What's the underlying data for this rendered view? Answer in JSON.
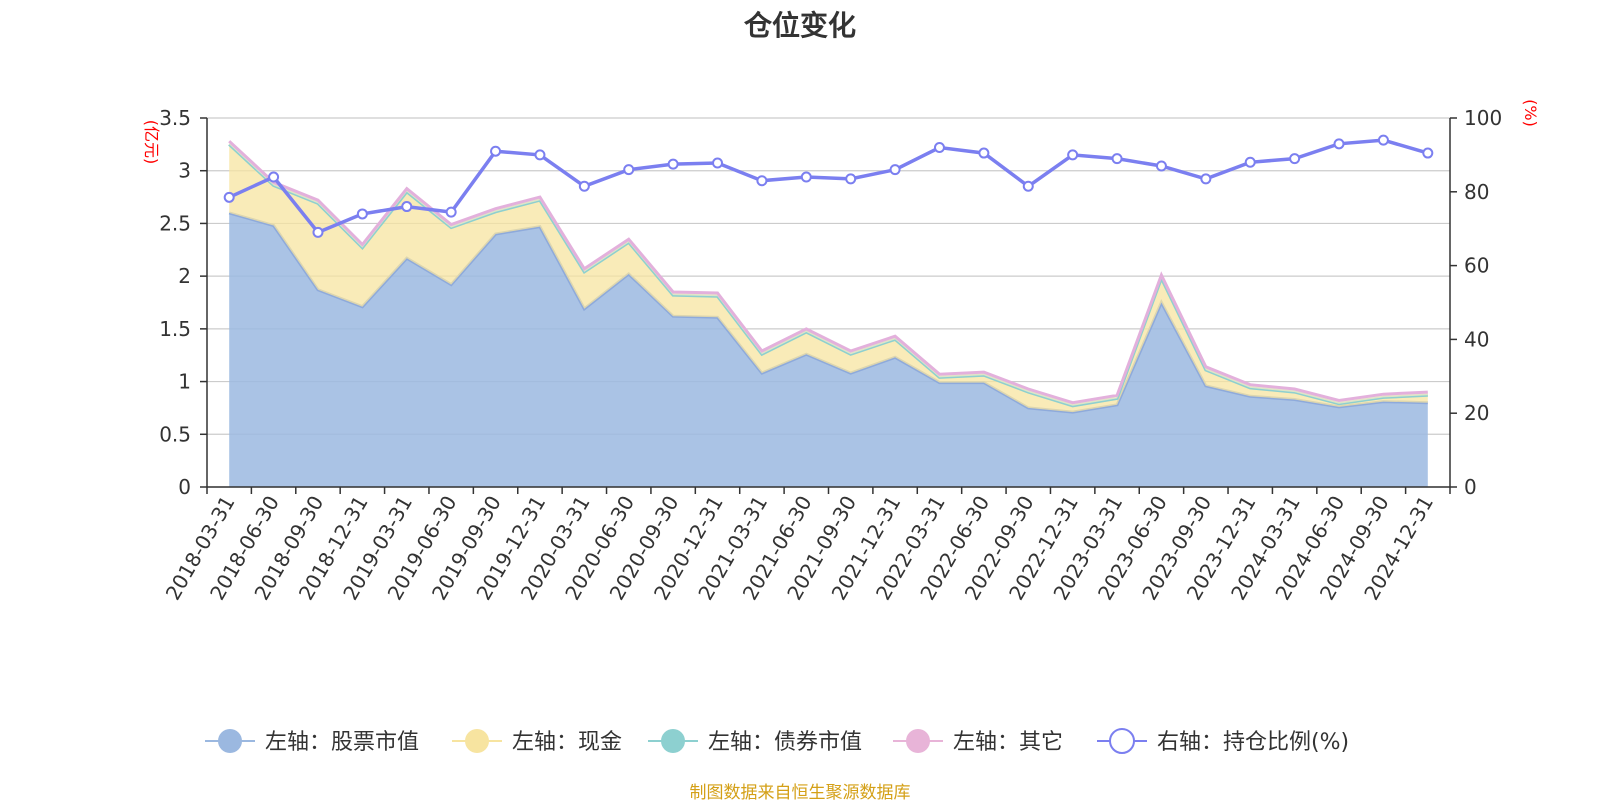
{
  "chart_data": {
    "type": "area",
    "title": "仓位变化",
    "left_axis_unit": "(亿元)",
    "right_axis_unit": "(%)",
    "left_ylim": [
      0,
      3.5
    ],
    "left_ticks": [
      "0",
      "0.5",
      "1",
      "1.5",
      "2",
      "2.5",
      "3",
      "3.5"
    ],
    "right_ylim": [
      0,
      100
    ],
    "right_ticks": [
      "0",
      "20",
      "40",
      "60",
      "80",
      "100"
    ],
    "categories": [
      "2018-03-31",
      "2018-06-30",
      "2018-09-30",
      "2018-12-31",
      "2019-03-31",
      "2019-06-30",
      "2019-09-30",
      "2019-12-31",
      "2020-03-31",
      "2020-06-30",
      "2020-09-30",
      "2020-12-31",
      "2021-03-31",
      "2021-06-30",
      "2021-09-30",
      "2021-12-31",
      "2022-03-31",
      "2022-06-30",
      "2022-09-30",
      "2022-12-31",
      "2023-03-31",
      "2023-06-30",
      "2023-09-30",
      "2023-12-31",
      "2024-03-31",
      "2024-06-30",
      "2024-09-30",
      "2024-12-31"
    ],
    "series": [
      {
        "name": "左轴：股票市值",
        "axis": "left",
        "stack": true,
        "color": "#9bb8e0",
        "values": [
          2.6,
          2.48,
          1.87,
          1.71,
          2.17,
          1.92,
          2.4,
          2.47,
          1.69,
          2.02,
          1.62,
          1.61,
          1.08,
          1.26,
          1.08,
          1.23,
          0.99,
          0.99,
          0.75,
          0.71,
          0.78,
          1.75,
          0.96,
          0.86,
          0.83,
          0.76,
          0.81,
          0.8
        ]
      },
      {
        "name": "左轴：现金",
        "axis": "left",
        "stack": true,
        "color": "#f7e4a0",
        "values": [
          0.65,
          0.38,
          0.82,
          0.56,
          0.63,
          0.54,
          0.21,
          0.25,
          0.35,
          0.3,
          0.2,
          0.2,
          0.18,
          0.21,
          0.18,
          0.17,
          0.05,
          0.07,
          0.15,
          0.06,
          0.06,
          0.23,
          0.15,
          0.08,
          0.07,
          0.03,
          0.04,
          0.07
        ]
      },
      {
        "name": "左轴：债券市值",
        "axis": "left",
        "stack": true,
        "color": "#8dd0d0",
        "values": [
          0,
          0,
          0,
          0,
          0,
          0,
          0,
          0,
          0,
          0,
          0,
          0,
          0,
          0,
          0,
          0,
          0,
          0,
          0,
          0,
          0,
          0,
          0,
          0,
          0,
          0,
          0,
          0
        ]
      },
      {
        "name": "左轴：其它",
        "axis": "left",
        "stack": true,
        "color": "#e8b4d8",
        "values": [
          0.03,
          0.03,
          0.03,
          0.03,
          0.03,
          0.03,
          0.03,
          0.03,
          0.03,
          0.03,
          0.03,
          0.03,
          0.03,
          0.03,
          0.03,
          0.03,
          0.03,
          0.03,
          0.03,
          0.03,
          0.03,
          0.03,
          0.03,
          0.03,
          0.03,
          0.03,
          0.03,
          0.03
        ]
      },
      {
        "name": "右轴：持仓比例(%)",
        "axis": "right",
        "stack": false,
        "color": "#7b7ff0",
        "values": [
          78.5,
          84,
          69,
          74,
          76,
          74.5,
          91,
          90,
          81.5,
          86,
          87.5,
          87.8,
          83,
          84,
          83.5,
          86,
          92,
          90.5,
          81.5,
          90,
          89,
          87,
          83.5,
          88,
          89,
          93,
          94,
          90.5
        ]
      }
    ]
  },
  "source_note": "制图数据来自恒生聚源数据库"
}
